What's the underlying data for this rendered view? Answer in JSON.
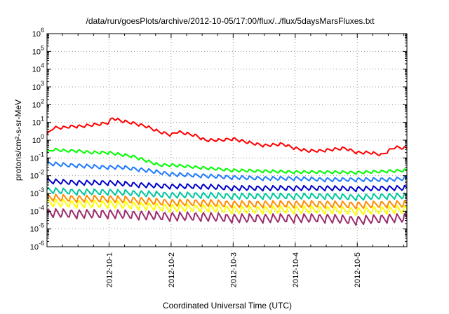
{
  "chart_data": {
    "type": "line",
    "title": "/data/run/goesPlots/archive/2012-10-05/17:00/flux/../flux/5daysMarsFluxes.txt",
    "xlabel": "Coordinated Universal Time (UTC)",
    "ylabel": "protons/cm²-s-sr-MeV",
    "yscale": "log",
    "ylim": [
      1e-06,
      1000000.0
    ],
    "xlim": [
      0,
      5.8
    ],
    "grid": true,
    "legend": "none",
    "x_ticks": [
      {
        "x": 1,
        "label": "2012-10-1"
      },
      {
        "x": 2,
        "label": "2012-10-2"
      },
      {
        "x": 3,
        "label": "2012-10-3"
      },
      {
        "x": 4,
        "label": "2012-10-4"
      },
      {
        "x": 5,
        "label": "2012-10-5"
      }
    ],
    "y_ticks": [
      {
        "exp": -6,
        "label": "10-6"
      },
      {
        "exp": -5,
        "label": "10-5"
      },
      {
        "exp": -4,
        "label": "10-4"
      },
      {
        "exp": -3,
        "label": "10-3"
      },
      {
        "exp": -2,
        "label": "10-2"
      },
      {
        "exp": -1,
        "label": "10-1"
      },
      {
        "exp": 0,
        "label": "100"
      },
      {
        "exp": 1,
        "label": "101"
      },
      {
        "exp": 2,
        "label": "102"
      },
      {
        "exp": 3,
        "label": "103"
      },
      {
        "exp": 4,
        "label": "104"
      },
      {
        "exp": 5,
        "label": "105"
      },
      {
        "exp": 6,
        "label": "106"
      }
    ],
    "series": [
      {
        "color": "#ff0000",
        "x": [
          0.0,
          0.1,
          0.25,
          0.4,
          0.55,
          0.7,
          0.85,
          1.0,
          1.05,
          1.2,
          1.4,
          1.6,
          1.8,
          2.0,
          2.1,
          2.4,
          2.55,
          2.8,
          3.0,
          3.2,
          3.5,
          3.8,
          4.0,
          4.2,
          4.4,
          4.6,
          4.8,
          5.0,
          5.2,
          5.4,
          5.6,
          5.8
        ],
        "y": [
          2,
          5,
          5,
          6,
          6,
          7,
          8,
          10,
          18,
          12,
          9,
          6,
          3,
          2,
          3,
          1.8,
          1.0,
          1.0,
          1.2,
          0.8,
          0.5,
          0.6,
          0.35,
          0.25,
          0.25,
          0.3,
          0.35,
          0.2,
          0.2,
          0.15,
          0.4,
          0.35
        ]
      },
      {
        "color": "#00ff00",
        "x": [
          0.0,
          0.1,
          0.3,
          0.5,
          0.7,
          0.9,
          1.0,
          1.2,
          1.4,
          1.6,
          1.8,
          2.0,
          2.4,
          3.0,
          3.5,
          4.0,
          4.5,
          5.0,
          5.5,
          5.8
        ],
        "y": [
          0.2,
          0.3,
          0.25,
          0.25,
          0.2,
          0.2,
          0.2,
          0.15,
          0.12,
          0.07,
          0.04,
          0.04,
          0.03,
          0.02,
          0.018,
          0.016,
          0.016,
          0.015,
          0.018,
          0.02
        ]
      },
      {
        "color": "#1f7bff",
        "x": [
          0.0,
          0.3,
          0.6,
          0.9,
          1.2,
          1.6,
          2.0,
          2.5,
          3.0,
          3.5,
          4.0,
          4.5,
          5.0,
          5.5,
          5.8
        ],
        "y": [
          0.05,
          0.04,
          0.035,
          0.03,
          0.03,
          0.02,
          0.012,
          0.01,
          0.008,
          0.007,
          0.007,
          0.006,
          0.006,
          0.006,
          0.007
        ]
      },
      {
        "color": "#0000cc",
        "x": [
          0.0,
          0.5,
          1.0,
          1.5,
          2.0,
          2.5,
          3.0,
          3.5,
          4.0,
          4.5,
          5.0,
          5.5,
          5.8
        ],
        "y": [
          0.005,
          0.004,
          0.004,
          0.003,
          0.0025,
          0.0025,
          0.002,
          0.002,
          0.002,
          0.002,
          0.0018,
          0.002,
          0.002
        ]
      },
      {
        "color": "#00c8a0",
        "x": [
          0.0,
          0.5,
          1.0,
          1.5,
          2.0,
          2.5,
          3.0,
          3.5,
          4.0,
          4.5,
          5.0,
          5.5,
          5.8
        ],
        "y": [
          0.0015,
          0.0012,
          0.0012,
          0.001,
          0.0008,
          0.0008,
          0.0007,
          0.0007,
          0.0007,
          0.0007,
          0.0006,
          0.0007,
          0.0007
        ]
      },
      {
        "color": "#ff8c00",
        "x": [
          0.0,
          0.5,
          1.0,
          1.5,
          2.0,
          2.5,
          3.0,
          3.5,
          4.0,
          4.5,
          5.0,
          5.5,
          5.8
        ],
        "y": [
          0.0006,
          0.0005,
          0.0005,
          0.0004,
          0.0003,
          0.0003,
          0.00025,
          0.00025,
          0.00025,
          0.00025,
          0.00022,
          0.00025,
          0.00025
        ]
      },
      {
        "color": "#ffff00",
        "x": [
          0.0,
          0.5,
          1.0,
          1.5,
          2.0,
          2.5,
          3.0,
          3.5,
          4.0,
          4.5,
          5.0,
          5.5,
          5.8
        ],
        "y": [
          0.0003,
          0.00025,
          0.00025,
          0.0002,
          0.00015,
          0.00015,
          0.00012,
          0.00012,
          0.00012,
          0.00012,
          0.0001,
          0.00012,
          0.00012
        ]
      },
      {
        "color": "#9b2d6e",
        "x": [
          0.0,
          0.5,
          1.0,
          1.5,
          2.0,
          2.5,
          3.0,
          3.5,
          4.0,
          4.5,
          5.0,
          5.5,
          5.8
        ],
        "y": [
          8e-05,
          7e-05,
          7e-05,
          6e-05,
          5e-05,
          5e-05,
          4e-05,
          4e-05,
          4e-05,
          4e-05,
          3e-05,
          4e-05,
          4e-05
        ]
      }
    ]
  }
}
